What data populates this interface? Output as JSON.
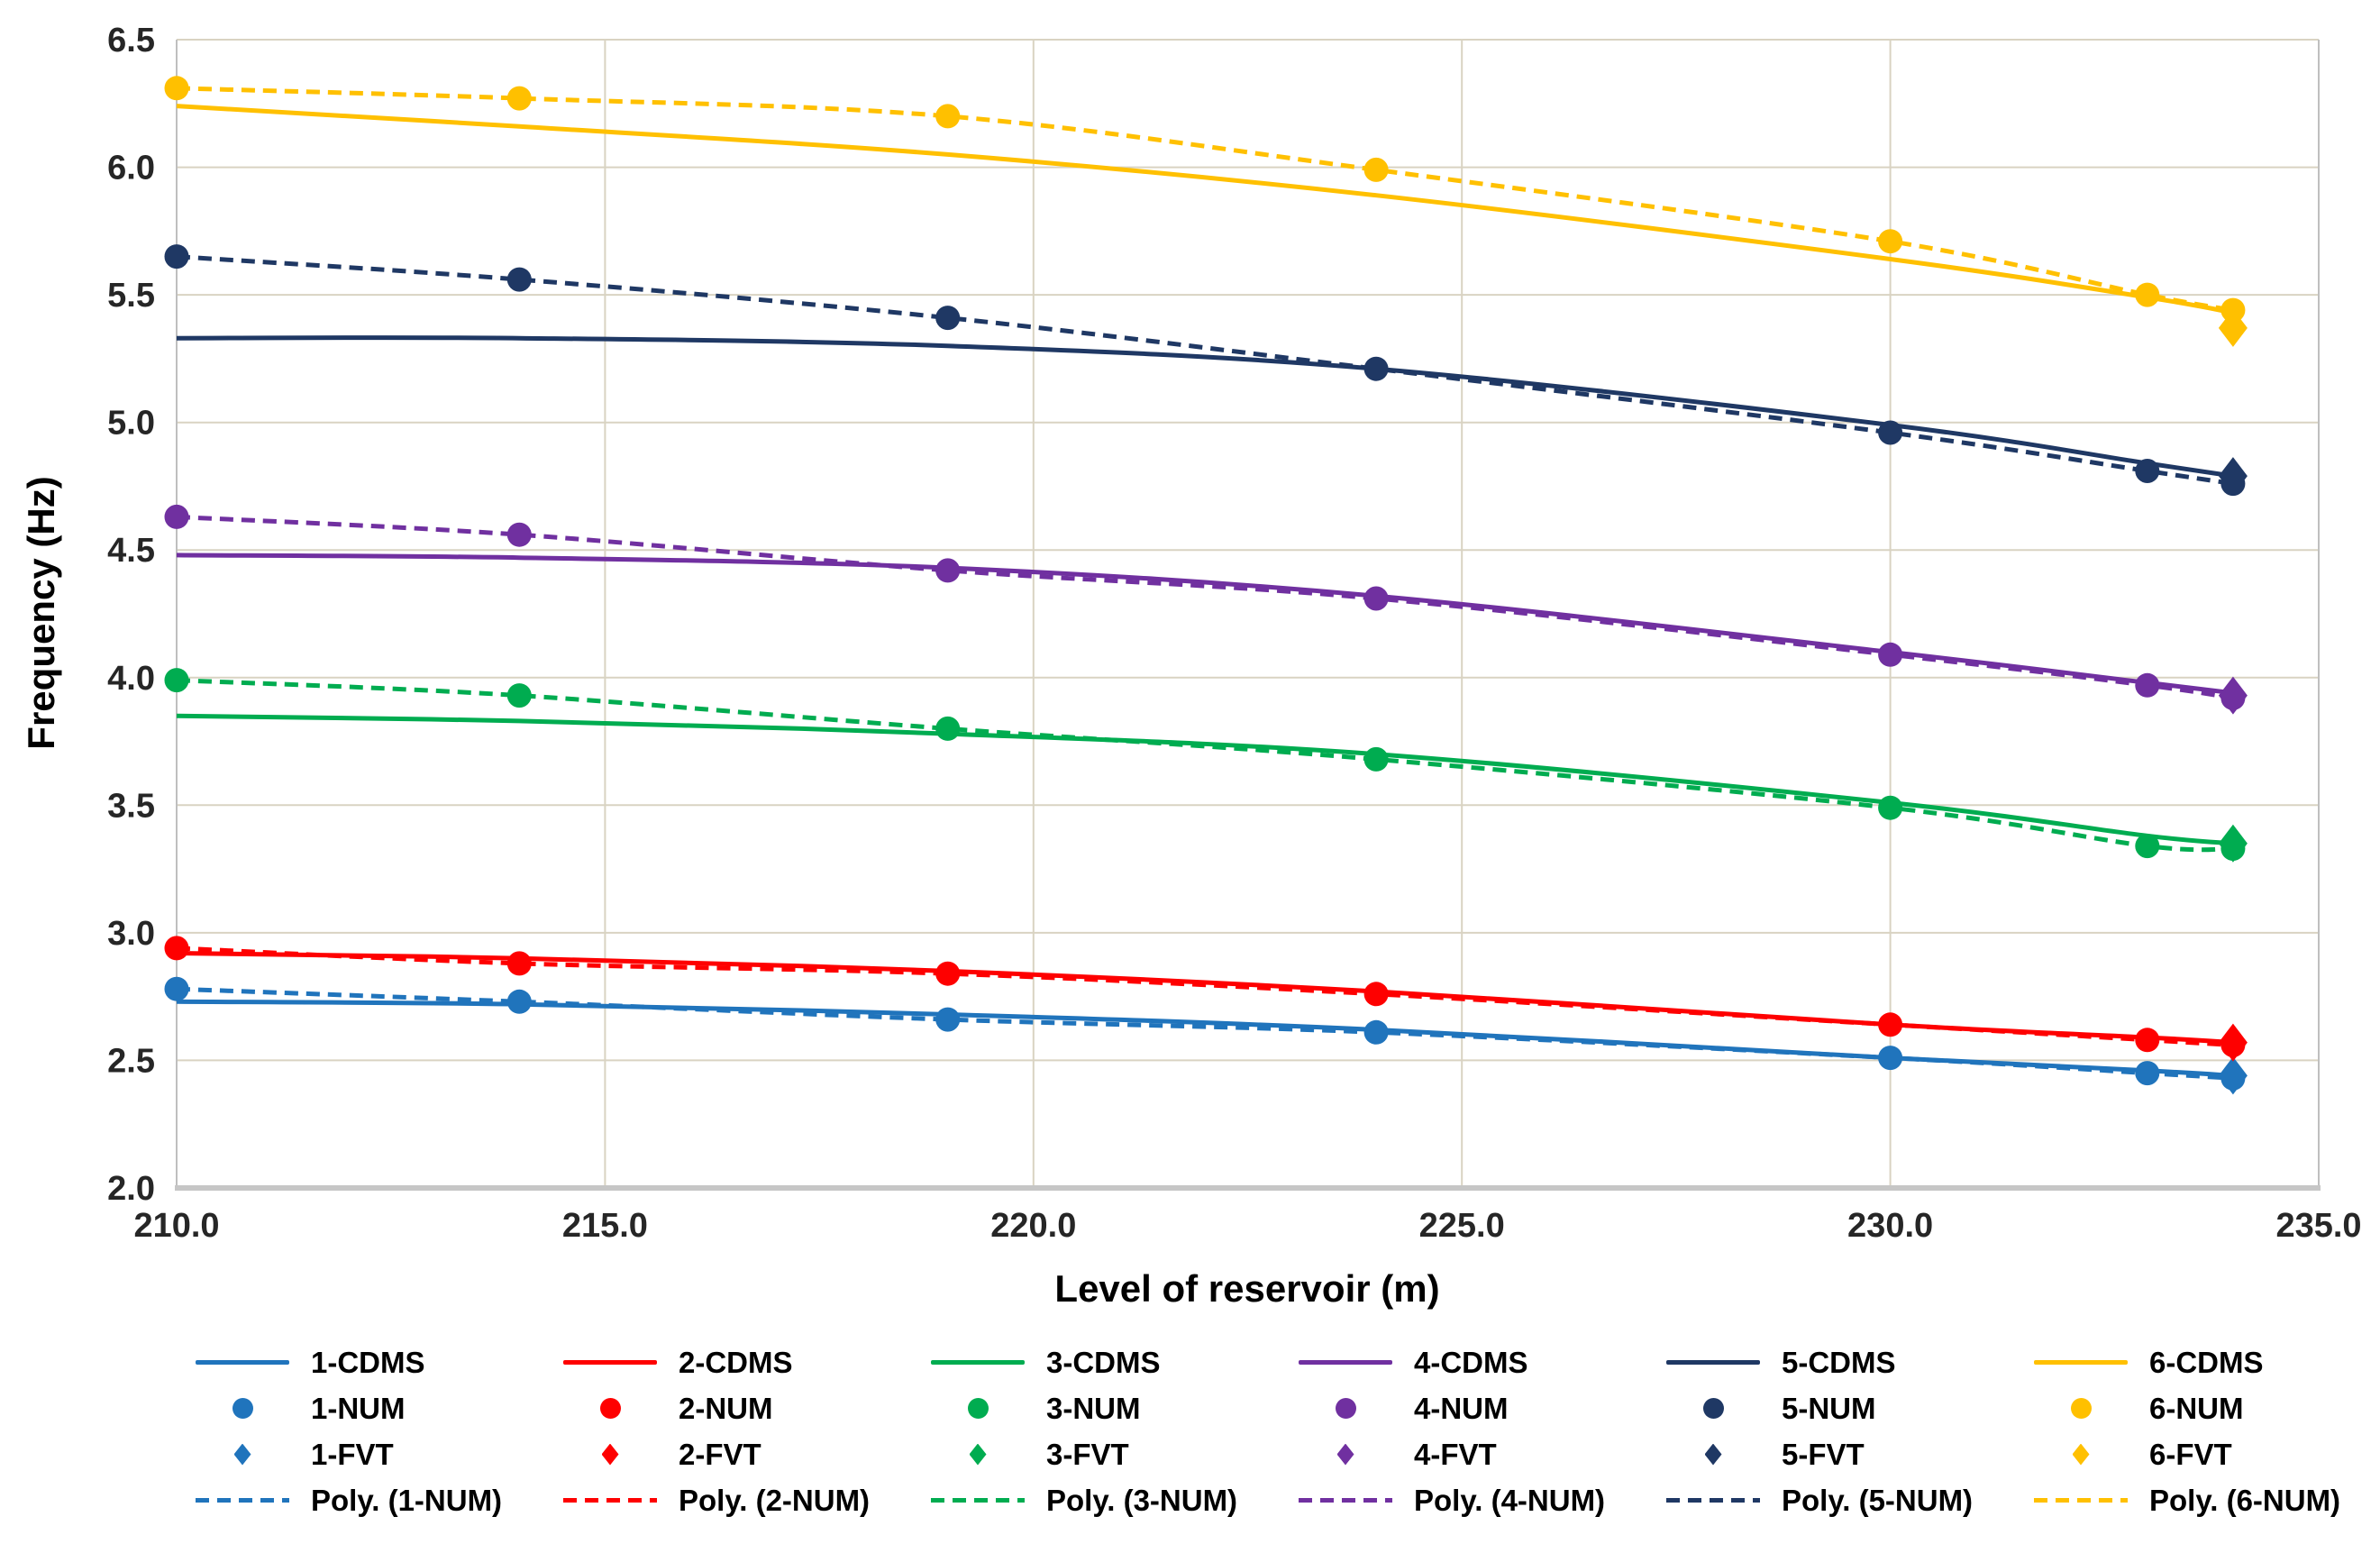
{
  "chart_data": {
    "type": "line",
    "title": "",
    "xlabel": "Level of reservoir (m)",
    "ylabel": "Frequency (Hz)",
    "xlim": [
      210.0,
      235.0
    ],
    "ylim": [
      2.0,
      6.5
    ],
    "grid": true,
    "legend_position": "bottom",
    "x_ticks": [
      "210.0",
      "215.0",
      "220.0",
      "225.0",
      "230.0",
      "235.0"
    ],
    "y_ticks": [
      "6.5",
      "6.0",
      "5.5",
      "5.0",
      "4.5",
      "4.0",
      "3.5",
      "3.0",
      "2.5",
      "2.0"
    ],
    "x": [
      210,
      214,
      219,
      224,
      230,
      233,
      234
    ],
    "fvt_x": 234,
    "groups": [
      {
        "id": "1",
        "color": "#2074BC",
        "labels": {
          "cdms": "1-CDMS",
          "num": "1-NUM",
          "fvt": "1-FVT",
          "poly": "Poly. (1-NUM)"
        },
        "cdms": [
          2.73,
          2.72,
          2.68,
          2.62,
          2.51,
          2.46,
          2.44
        ],
        "num": [
          2.78,
          2.73,
          2.66,
          2.61,
          2.51,
          2.45,
          2.43
        ],
        "fvt": 2.44
      },
      {
        "id": "2",
        "color": "#FE0000",
        "labels": {
          "cdms": "2-CDMS",
          "num": "2-NUM",
          "fvt": "2-FVT",
          "poly": "Poly. (2-NUM)"
        },
        "cdms": [
          2.92,
          2.9,
          2.85,
          2.77,
          2.64,
          2.59,
          2.57
        ],
        "num": [
          2.94,
          2.88,
          2.84,
          2.76,
          2.64,
          2.58,
          2.56
        ],
        "fvt": 2.57
      },
      {
        "id": "3",
        "color": "#00AC50",
        "labels": {
          "cdms": "3-CDMS",
          "num": "3-NUM",
          "fvt": "3-FVT",
          "poly": "Poly. (3-NUM)"
        },
        "cdms": [
          3.85,
          3.83,
          3.78,
          3.7,
          3.51,
          3.38,
          3.35
        ],
        "num": [
          3.99,
          3.93,
          3.8,
          3.68,
          3.49,
          3.34,
          3.33
        ],
        "fvt": 3.35
      },
      {
        "id": "4",
        "color": "#7030A0",
        "labels": {
          "cdms": "4-CDMS",
          "num": "4-NUM",
          "fvt": "4-FVT",
          "poly": "Poly. (4-NUM)"
        },
        "cdms": [
          4.48,
          4.47,
          4.43,
          4.32,
          4.1,
          3.98,
          3.94
        ],
        "num": [
          4.63,
          4.56,
          4.42,
          4.31,
          4.09,
          3.97,
          3.92
        ],
        "fvt": 3.93
      },
      {
        "id": "5",
        "color": "#1F3864",
        "labels": {
          "cdms": "5-CDMS",
          "num": "5-NUM",
          "fvt": "5-FVT",
          "poly": "Poly. (5-NUM)"
        },
        "cdms": [
          5.33,
          5.33,
          5.3,
          5.21,
          4.99,
          4.84,
          4.79
        ],
        "num": [
          5.65,
          5.56,
          5.41,
          5.21,
          4.96,
          4.81,
          4.76
        ],
        "fvt": 4.79
      },
      {
        "id": "6",
        "color": "#FFC000",
        "labels": {
          "cdms": "6-CDMS",
          "num": "6-NUM",
          "fvt": "6-FVT",
          "poly": "Poly. (6-NUM)"
        },
        "cdms": [
          6.24,
          6.16,
          6.05,
          5.89,
          5.64,
          5.49,
          5.43
        ],
        "num": [
          6.31,
          6.27,
          6.2,
          5.99,
          5.71,
          5.5,
          5.44
        ],
        "fvt": 5.37
      }
    ],
    "colors": {
      "gridline": "#D9D3C2",
      "axis": "#BFBFBF",
      "bottom_axis": "#C6C6C6",
      "tick_text": "#262626"
    }
  }
}
